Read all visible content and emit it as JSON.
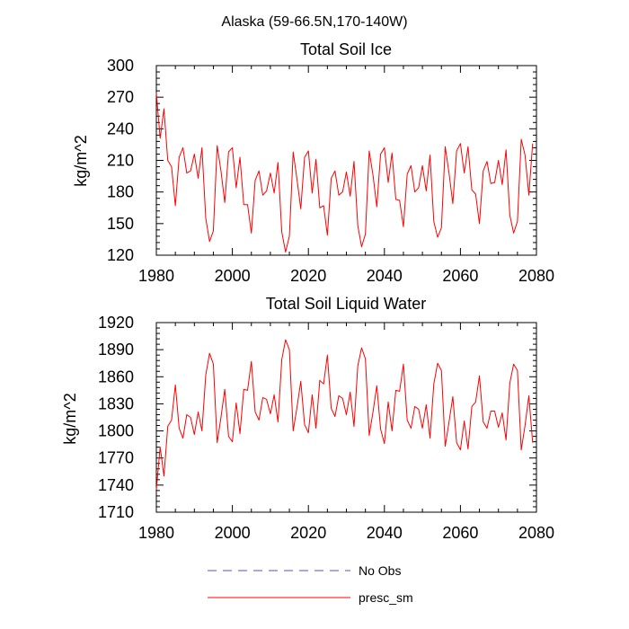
{
  "suptitle": "Alaska (59-66.5N,170-140W)",
  "legend": {
    "items": [
      {
        "label": "No Obs",
        "color": "#5555aa",
        "dash": true
      },
      {
        "label": "presc_sm",
        "color": "#ff0000",
        "dash": false
      }
    ]
  },
  "chart_data": [
    {
      "type": "line",
      "title": "Total Soil Ice",
      "ylabel": "kg/m^2",
      "xlabel": "",
      "xlim": [
        1980,
        2080
      ],
      "ylim": [
        120,
        300
      ],
      "xticks": [
        1980,
        2000,
        2020,
        2040,
        2060,
        2080
      ],
      "yticks": [
        120,
        150,
        180,
        210,
        240,
        270,
        300
      ],
      "x_start": 1980,
      "series": [
        {
          "name": "presc_sm",
          "color": "#ff0000",
          "values": [
            274,
            231,
            259,
            210,
            204,
            167,
            213,
            222,
            198,
            200,
            216,
            193,
            222,
            155,
            133,
            143,
            224,
            200,
            170,
            218,
            222,
            184,
            213,
            168,
            168,
            141,
            191,
            200,
            177,
            181,
            198,
            179,
            208,
            142,
            123,
            138,
            218,
            192,
            164,
            213,
            219,
            179,
            211,
            165,
            167,
            139,
            193,
            200,
            177,
            180,
            199,
            176,
            209,
            148,
            128,
            140,
            219,
            196,
            166,
            216,
            222,
            189,
            217,
            173,
            172,
            147,
            197,
            205,
            180,
            184,
            205,
            181,
            215,
            152,
            137,
            146,
            223,
            198,
            169,
            219,
            226,
            198,
            223,
            182,
            178,
            150,
            200,
            209,
            188,
            189,
            210,
            187,
            220,
            158,
            141,
            152,
            230,
            215,
            177,
            226
          ]
        }
      ]
    },
    {
      "type": "line",
      "title": "Total Soil Liquid Water",
      "ylabel": "kg/m^2",
      "xlabel": "",
      "xlim": [
        1980,
        2080
      ],
      "ylim": [
        1710,
        1920
      ],
      "xticks": [
        1980,
        2000,
        2020,
        2040,
        2060,
        2080
      ],
      "yticks": [
        1710,
        1740,
        1770,
        1800,
        1830,
        1860,
        1890,
        1920
      ],
      "x_start": 1980,
      "series": [
        {
          "name": "presc_sm",
          "color": "#ff0000",
          "values": [
            1735,
            1782,
            1750,
            1805,
            1812,
            1851,
            1803,
            1792,
            1818,
            1815,
            1796,
            1821,
            1800,
            1862,
            1886,
            1874,
            1787,
            1815,
            1846,
            1794,
            1788,
            1831,
            1797,
            1846,
            1845,
            1877,
            1821,
            1812,
            1837,
            1835,
            1819,
            1840,
            1810,
            1879,
            1901,
            1890,
            1800,
            1826,
            1855,
            1807,
            1798,
            1840,
            1803,
            1856,
            1852,
            1884,
            1825,
            1816,
            1839,
            1836,
            1818,
            1843,
            1805,
            1872,
            1892,
            1880,
            1795,
            1821,
            1850,
            1802,
            1786,
            1832,
            1800,
            1845,
            1844,
            1874,
            1812,
            1803,
            1827,
            1824,
            1803,
            1829,
            1792,
            1852,
            1875,
            1867,
            1783,
            1810,
            1838,
            1787,
            1779,
            1811,
            1780,
            1827,
            1832,
            1861,
            1810,
            1803,
            1822,
            1822,
            1804,
            1820,
            1790,
            1853,
            1874,
            1867,
            1779,
            1806,
            1839,
            1787
          ]
        }
      ]
    }
  ]
}
